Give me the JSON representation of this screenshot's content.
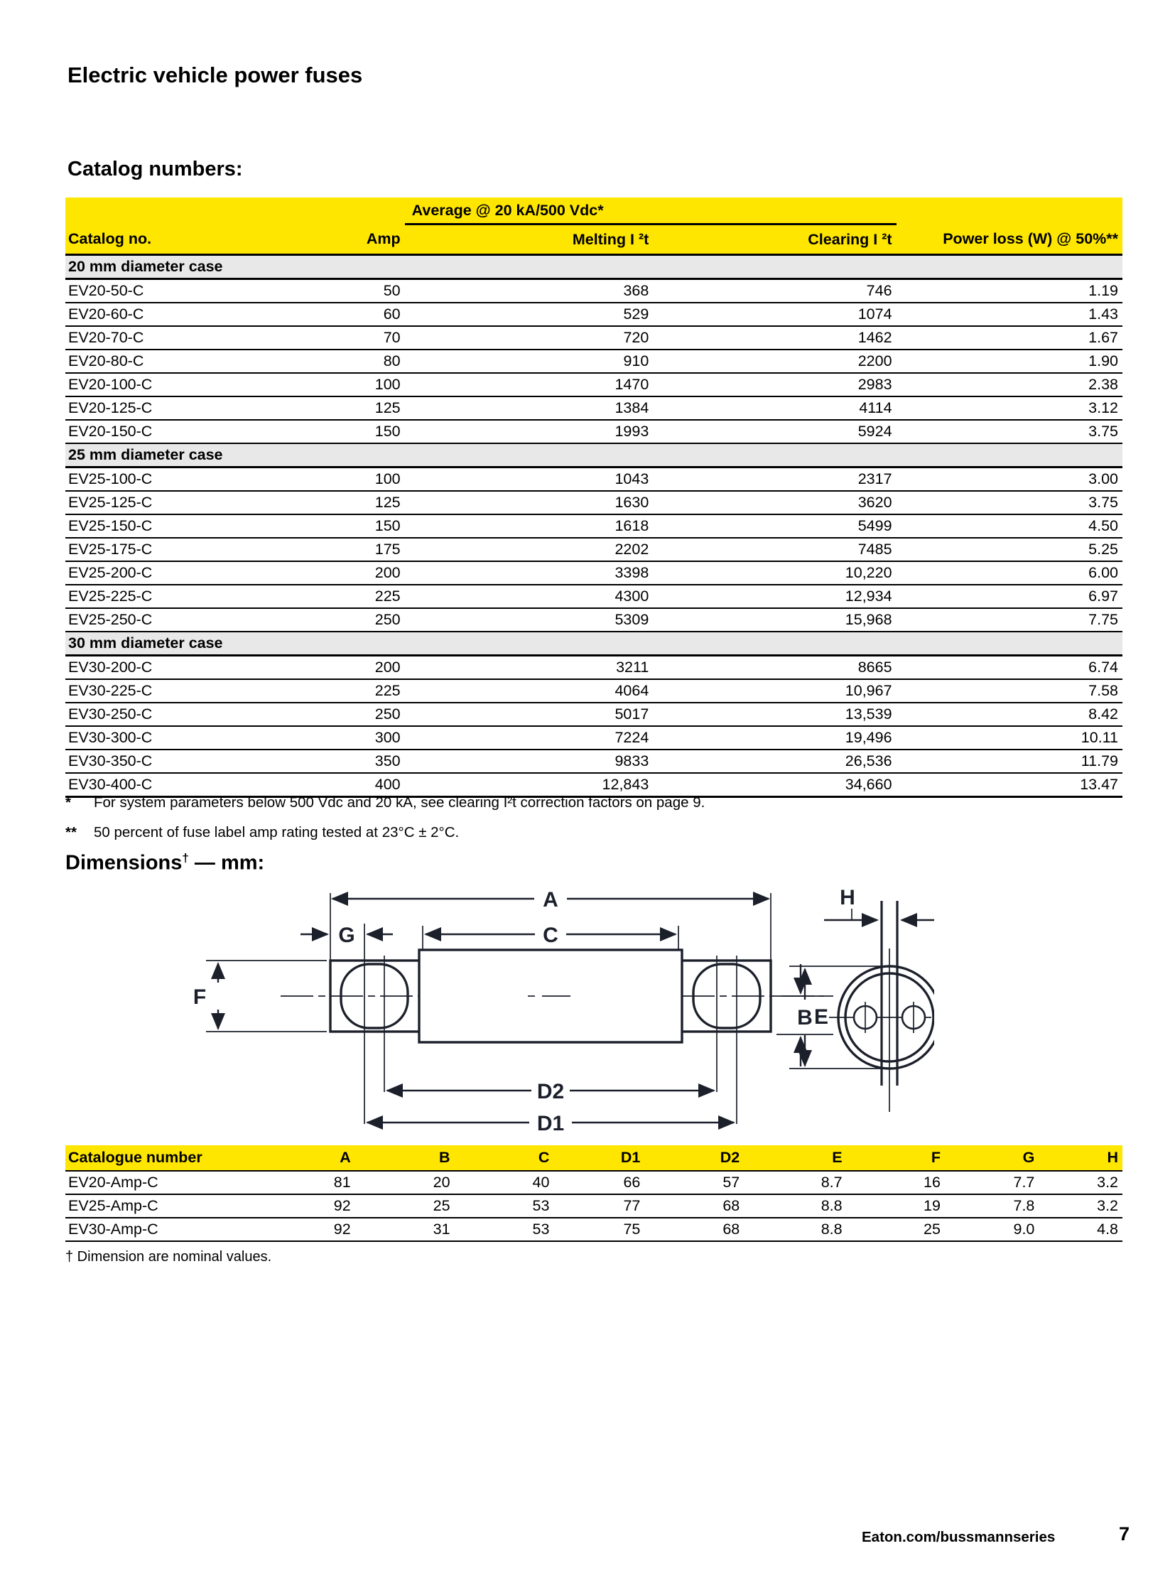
{
  "page": {
    "title": "Electric vehicle power fuses"
  },
  "catalog": {
    "heading": "Catalog numbers:",
    "avg_header": "Average @ 20 kA/500 Vdc*",
    "columns": [
      "Catalog no.",
      "Amp",
      "Melting I ²t",
      "Clearing I ²t",
      "Power loss (W) @ 50%**"
    ],
    "sections": [
      {
        "label": "20 mm diameter case",
        "rows": [
          [
            "EV20-50-C",
            "50",
            "368",
            "746",
            "1.19"
          ],
          [
            "EV20-60-C",
            "60",
            "529",
            "1074",
            "1.43"
          ],
          [
            "EV20-70-C",
            "70",
            "720",
            "1462",
            "1.67"
          ],
          [
            "EV20-80-C",
            "80",
            "910",
            "2200",
            "1.90"
          ],
          [
            "EV20-100-C",
            "100",
            "1470",
            "2983",
            "2.38"
          ],
          [
            "EV20-125-C",
            "125",
            "1384",
            "4114",
            "3.12"
          ],
          [
            "EV20-150-C",
            "150",
            "1993",
            "5924",
            "3.75"
          ]
        ]
      },
      {
        "label": "25 mm diameter case",
        "rows": [
          [
            "EV25-100-C",
            "100",
            "1043",
            "2317",
            "3.00"
          ],
          [
            "EV25-125-C",
            "125",
            "1630",
            "3620",
            "3.75"
          ],
          [
            "EV25-150-C",
            "150",
            "1618",
            "5499",
            "4.50"
          ],
          [
            "EV25-175-C",
            "175",
            "2202",
            "7485",
            "5.25"
          ],
          [
            "EV25-200-C",
            "200",
            "3398",
            "10,220",
            "6.00"
          ],
          [
            "EV25-225-C",
            "225",
            "4300",
            "12,934",
            "6.97"
          ],
          [
            "EV25-250-C",
            "250",
            "5309",
            "15,968",
            "7.75"
          ]
        ]
      },
      {
        "label": "30 mm diameter case",
        "rows": [
          [
            "EV30-200-C",
            "200",
            "3211",
            "8665",
            "6.74"
          ],
          [
            "EV30-225-C",
            "225",
            "4064",
            "10,967",
            "7.58"
          ],
          [
            "EV30-250-C",
            "250",
            "5017",
            "13,539",
            "8.42"
          ],
          [
            "EV30-300-C",
            "300",
            "7224",
            "19,496",
            "10.11"
          ],
          [
            "EV30-350-C",
            "350",
            "9833",
            "26,536",
            "11.79"
          ],
          [
            "EV30-400-C",
            "400",
            "12,843",
            "34,660",
            "13.47"
          ]
        ]
      }
    ],
    "fn1_marker": "*",
    "fn1": "For system parameters below 500 Vdc and 20 kA, see clearing I²t correction factors on page 9.",
    "fn2_marker": "**",
    "fn2": "50 percent of fuse label amp rating tested at 23°C ± 2°C."
  },
  "dims": {
    "heading_main": "Dimensions",
    "heading_sup": "†",
    "heading_rest": " — mm:",
    "columns": [
      "Catalogue number",
      "A",
      "B",
      "C",
      "D1",
      "D2",
      "E",
      "F",
      "G",
      "H"
    ],
    "rows": [
      [
        "EV20-Amp-C",
        "81",
        "20",
        "40",
        "66",
        "57",
        "8.7",
        "16",
        "7.7",
        "3.2"
      ],
      [
        "EV25-Amp-C",
        "92",
        "25",
        "53",
        "77",
        "68",
        "8.8",
        "19",
        "7.8",
        "3.2"
      ],
      [
        "EV30-Amp-C",
        "92",
        "31",
        "53",
        "75",
        "68",
        "8.8",
        "25",
        "9.0",
        "4.8"
      ]
    ],
    "footnote": "† Dimension are nominal values."
  },
  "diagram": {
    "labels": {
      "a": "A",
      "c": "C",
      "g": "G",
      "f": "F",
      "e": "E",
      "d2": "D2",
      "d1": "D1",
      "h": "H",
      "b": "B"
    }
  },
  "footer": {
    "url": "Eaton.com/bussmannseries",
    "page": "7"
  },
  "colors": {
    "accent_yellow": "#ffe600",
    "section_gray": "#e8e8e8",
    "ink": "#1c202b"
  }
}
